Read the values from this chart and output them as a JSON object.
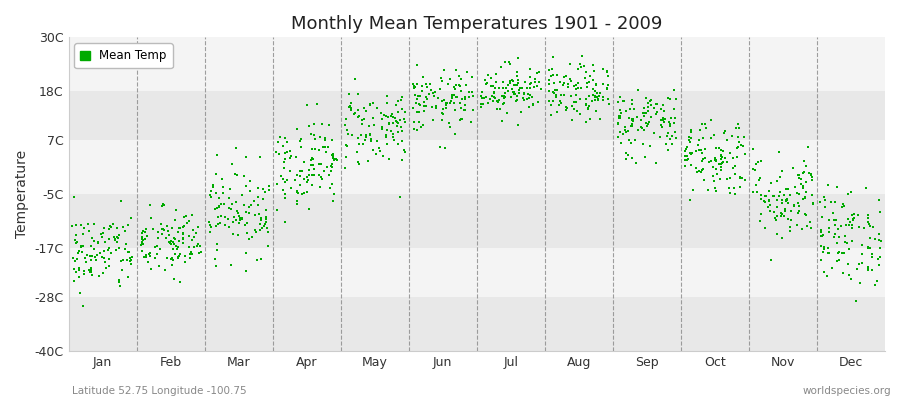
{
  "title": "Monthly Mean Temperatures 1901 - 2009",
  "ylabel": "Temperature",
  "bottom_left_label": "Latitude 52.75 Longitude -100.75",
  "bottom_right_label": "worldspecies.org",
  "yticks": [
    -40,
    -28,
    -17,
    -5,
    7,
    18,
    30
  ],
  "ytick_labels": [
    "-40C",
    "-28C",
    "-17C",
    "-5C",
    "7C",
    "18C",
    "30C"
  ],
  "ylim": [
    -40,
    30
  ],
  "months": [
    "Jan",
    "Feb",
    "Mar",
    "Apr",
    "May",
    "Jun",
    "Jul",
    "Aug",
    "Sep",
    "Oct",
    "Nov",
    "Dec"
  ],
  "dot_color": "#00aa00",
  "bg_band_colors": [
    "#e8e8e8",
    "#f4f4f4"
  ],
  "legend_label": "Mean Temp",
  "mean_temps": [
    -18.0,
    -16.0,
    -8.5,
    2.0,
    10.0,
    15.5,
    18.5,
    17.5,
    11.0,
    3.5,
    -5.5,
    -14.5
  ],
  "temp_spread": [
    4.5,
    4.0,
    5.0,
    5.0,
    4.5,
    3.5,
    2.8,
    3.2,
    4.0,
    4.5,
    5.0,
    5.5
  ],
  "n_years": 109,
  "start_year": 1901,
  "end_year": 2009
}
